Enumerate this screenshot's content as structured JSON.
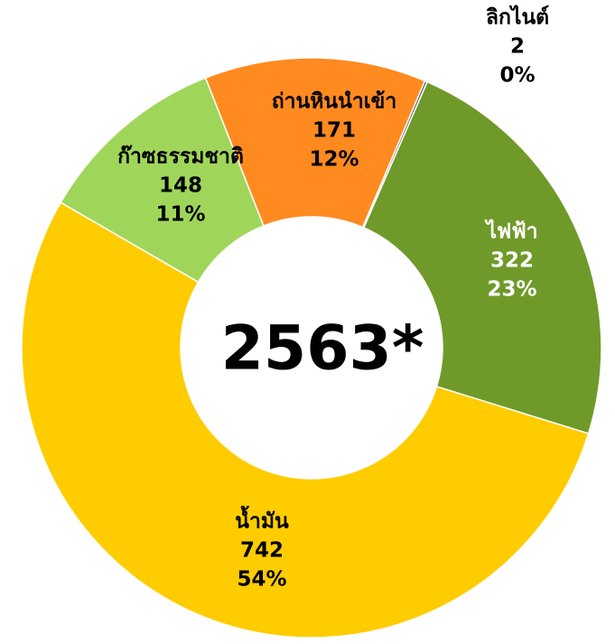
{
  "chart_data": {
    "type": "donut",
    "center_label": "2563*",
    "categories": [
      "ลิกไนต์",
      "ไฟฟ้า",
      "น้ำมัน",
      "ก๊าซธรรมชาติ",
      "ถ่านหินนำเข้า"
    ],
    "values": [
      2,
      322,
      742,
      148,
      171
    ],
    "percent_labels": [
      "0%",
      "23%",
      "54%",
      "11%",
      "12%"
    ],
    "colors": [
      "#5a5a5a",
      "#6f9a2a",
      "#ffcc00",
      "#9fd65a",
      "#ff8a1f"
    ]
  }
}
